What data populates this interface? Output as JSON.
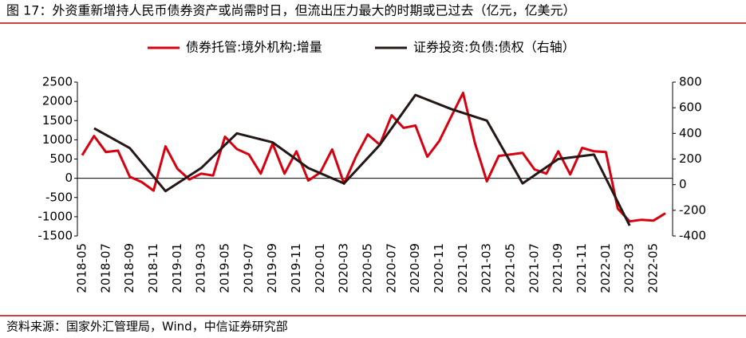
{
  "chart_data": {
    "type": "line",
    "title": "图 17：外资重新增持人民币债券资产或尚需时日，但流出压力最大的时期或已过去（亿元，亿美元）",
    "source": "资料来源：国家外汇管理局，Wind，中信证券研究部",
    "categories": [
      "2018-05",
      null,
      "2018-07",
      null,
      "2018-09",
      null,
      "2018-11",
      null,
      "2019-01",
      null,
      "2019-03",
      null,
      "2019-05",
      null,
      "2019-07",
      null,
      "2019-09",
      null,
      "2019-11",
      null,
      "2020-01",
      null,
      "2020-03",
      null,
      "2020-05",
      null,
      "2020-07",
      null,
      "2020-09",
      null,
      "2020-11",
      null,
      "2021-01",
      null,
      "2021-03",
      null,
      "2021-05",
      null,
      "2021-07",
      null,
      "2021-09",
      null,
      "2021-11",
      null,
      "2022-01",
      null,
      "2022-03",
      null,
      "2022-05",
      null
    ],
    "series": [
      {
        "name": "债券托管:境外机构:增量",
        "color": "#d7000f",
        "axis": "y",
        "values": [
          600,
          1100,
          680,
          720,
          40,
          -100,
          -320,
          830,
          250,
          -30,
          120,
          70,
          1080,
          760,
          620,
          120,
          900,
          120,
          700,
          -60,
          150,
          750,
          -140,
          560,
          1140,
          870,
          1640,
          1310,
          1370,
          560,
          970,
          1600,
          2220,
          910,
          -80,
          580,
          620,
          660,
          230,
          120,
          700,
          100,
          790,
          700,
          680,
          -790,
          -1120,
          -1080,
          -1100,
          -910
        ]
      },
      {
        "name": "证券投资:负债:债权（右轴）",
        "color": "#231815",
        "axis": "y2",
        "span_gaps": true,
        "values": [
          null,
          440,
          null,
          null,
          285,
          null,
          null,
          -50,
          null,
          null,
          130,
          null,
          null,
          400,
          null,
          null,
          330,
          null,
          null,
          130,
          null,
          null,
          10,
          null,
          null,
          310,
          null,
          null,
          700,
          null,
          null,
          590,
          null,
          null,
          500,
          null,
          null,
          10,
          null,
          null,
          200,
          null,
          null,
          235,
          null,
          null,
          -320,
          null,
          null,
          null
        ]
      }
    ],
    "ylim": [
      -1500,
      2500
    ],
    "yticks": [
      -1500,
      -1000,
      -500,
      0,
      500,
      1000,
      1500,
      2000,
      2500
    ],
    "y2lim": [
      -400,
      800
    ],
    "y2ticks": [
      -400,
      -200,
      0,
      200,
      400,
      600,
      800
    ],
    "legend": "top"
  }
}
